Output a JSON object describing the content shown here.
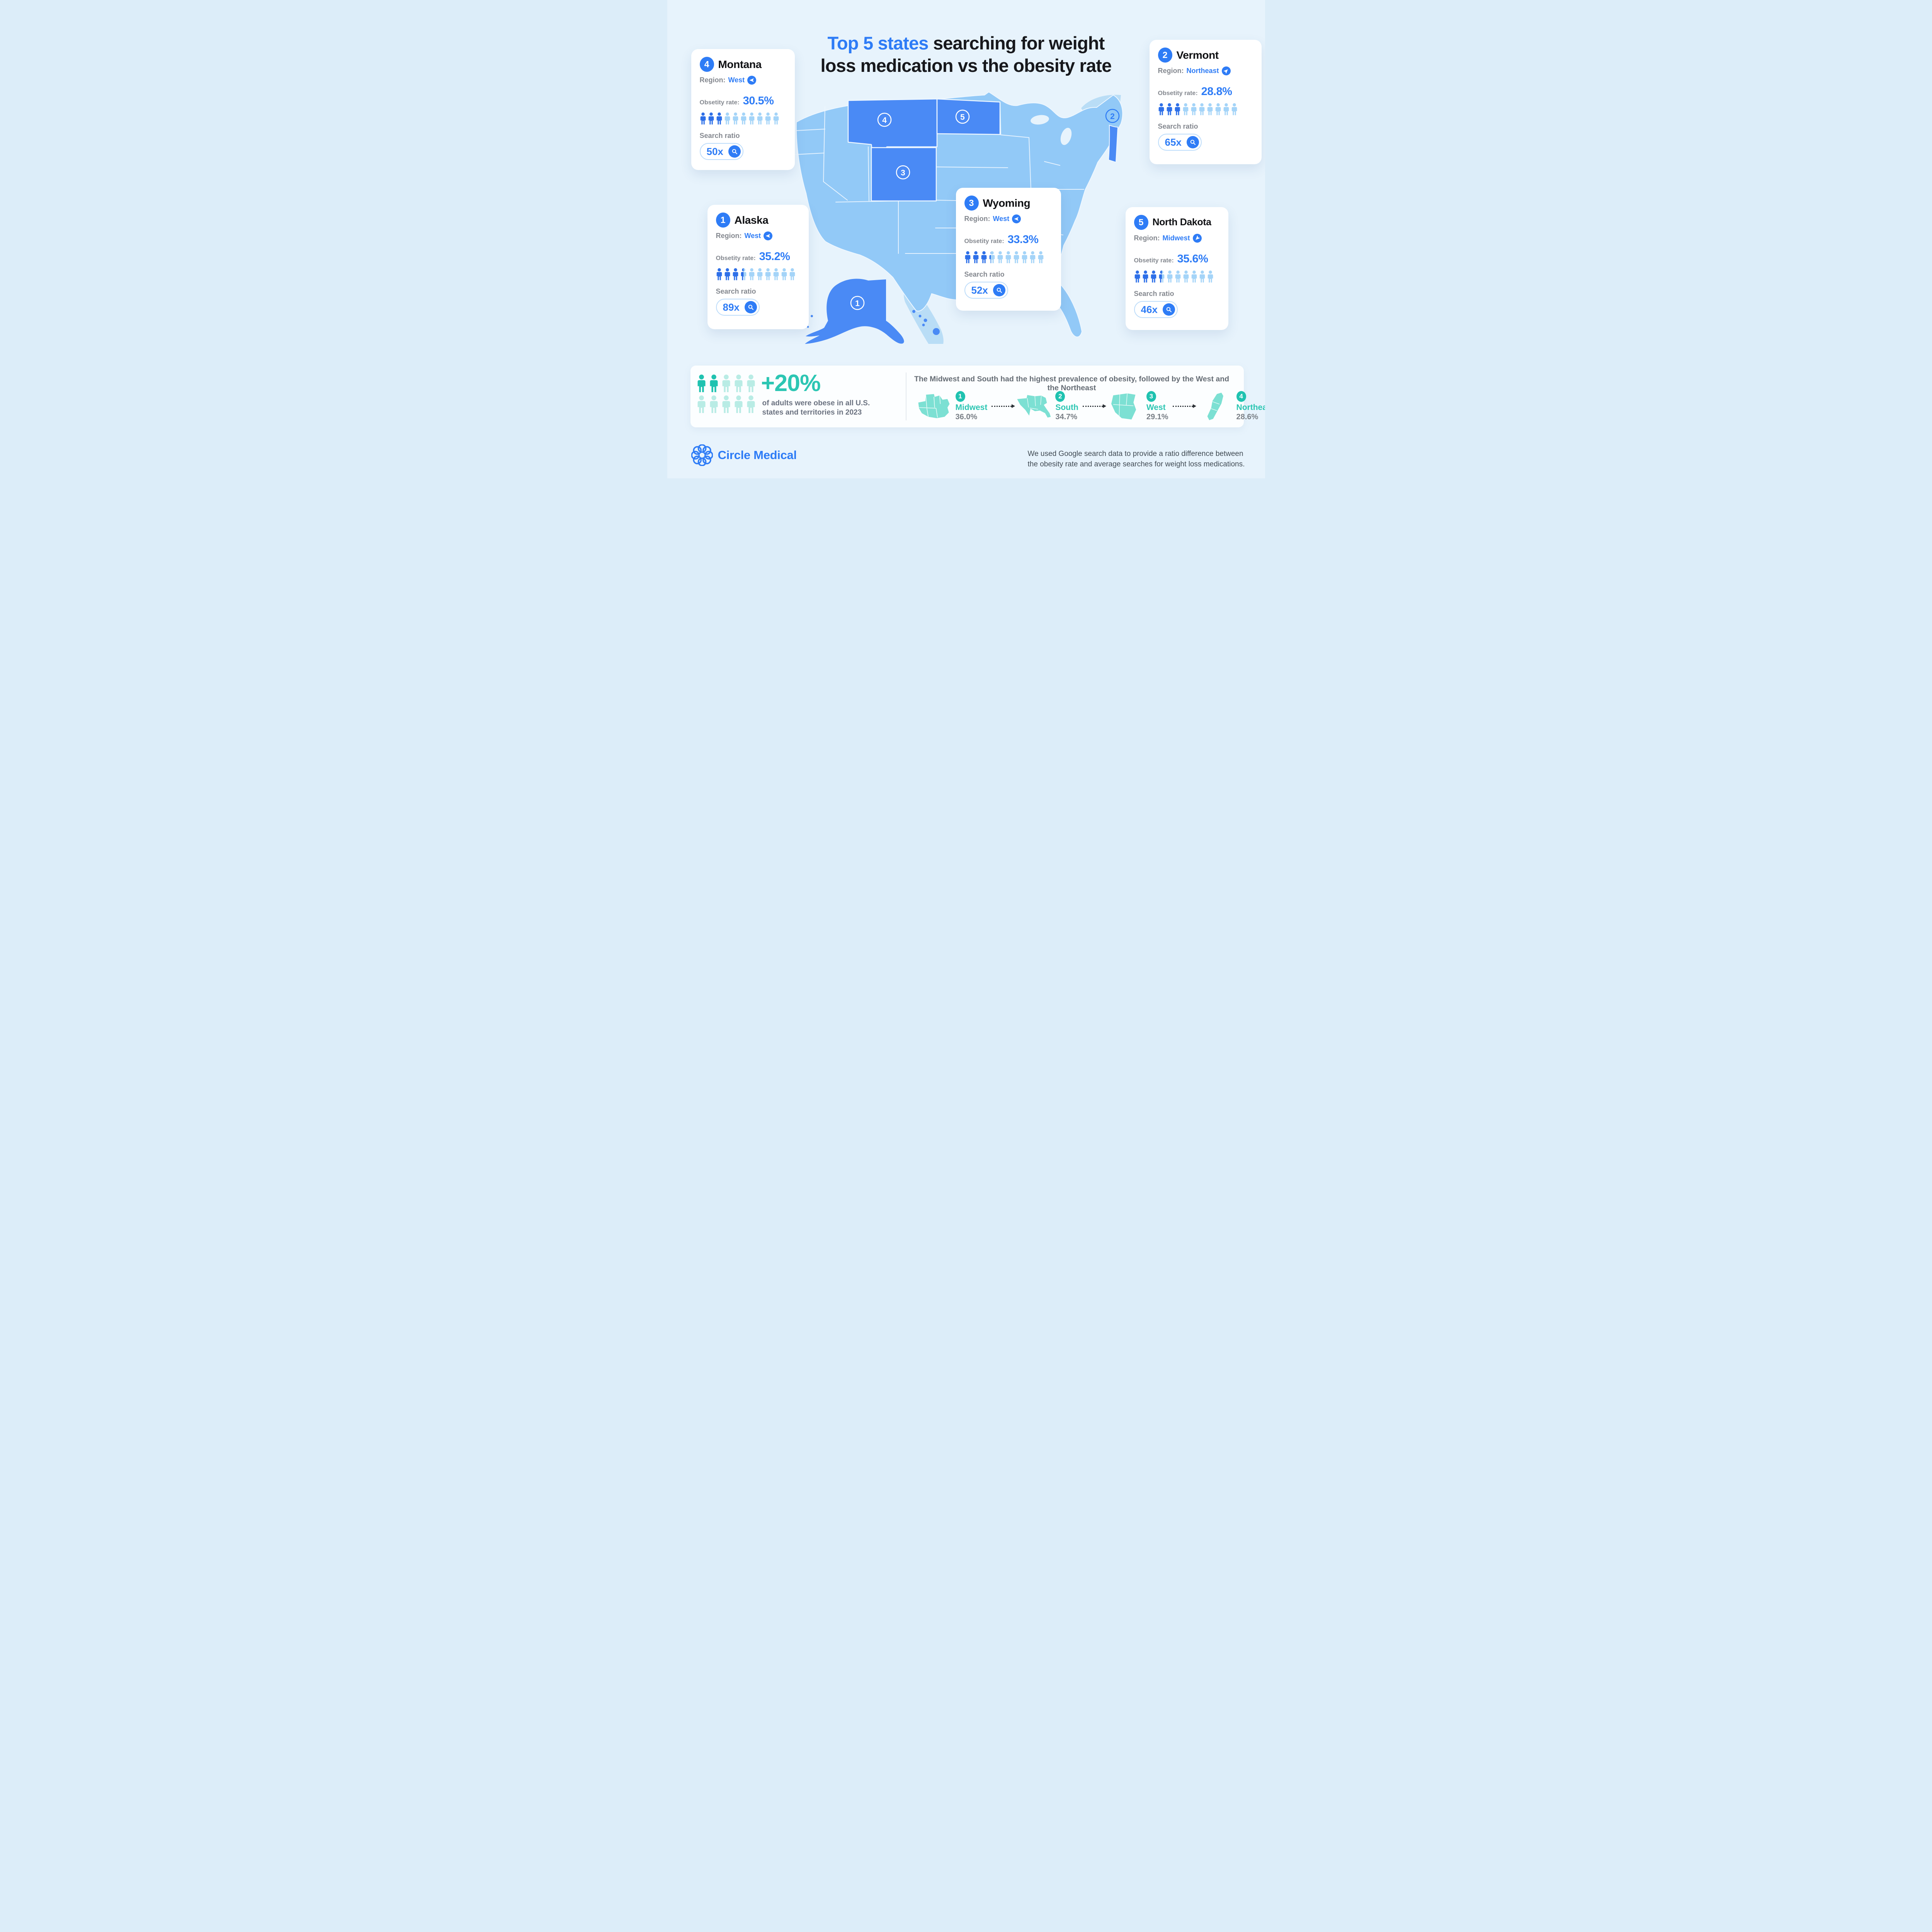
{
  "title": {
    "accent": "Top 5 states",
    "line1_rest": " searching for weight",
    "line2": "loss medication vs the obesity rate"
  },
  "labels": {
    "region": "Region:",
    "rate": "Obsetity rate:",
    "search": "Search ratio"
  },
  "cards": [
    {
      "rank": "1",
      "state": "Alaska",
      "region": "West",
      "direction": "west",
      "rate": "35.2%",
      "people_filled": 3.52,
      "ratio": "89x"
    },
    {
      "rank": "2",
      "state": "Vermont",
      "region": "Northeast",
      "direction": "northeast",
      "rate": "28.8%",
      "people_filled": 2.88,
      "ratio": "65x"
    },
    {
      "rank": "3",
      "state": "Wyoming",
      "region": "West",
      "direction": "west",
      "rate": "33.3%",
      "people_filled": 3.33,
      "ratio": "52x"
    },
    {
      "rank": "4",
      "state": "Montana",
      "region": "West",
      "direction": "west",
      "rate": "30.5%",
      "people_filled": 3.05,
      "ratio": "50x"
    },
    {
      "rank": "5",
      "state": "North Dakota",
      "region": "Midwest",
      "direction": "midwest",
      "rate": "35.6%",
      "people_filled": 3.56,
      "ratio": "46x"
    }
  ],
  "stat_banner": {
    "value": "+20%",
    "description": "of adults were obese in all U.S. states and territories in 2023",
    "people_filled": 2
  },
  "regions_panel": {
    "heading": "The Midwest and South had the highest prevalence of obesity, followed by the West and the Northeast",
    "items": [
      {
        "rank": "1",
        "name": "Midwest",
        "value": "36.0%"
      },
      {
        "rank": "2",
        "name": "South",
        "value": "34.7%"
      },
      {
        "rank": "3",
        "name": "West",
        "value": "29.1%"
      },
      {
        "rank": "4",
        "name": "Northeast",
        "value": "28.6%"
      }
    ]
  },
  "footer": {
    "brand": "Circle Medical",
    "note_line1": "We used Google search data to provide a ratio difference between",
    "note_line2": "the obesity rate and average searches for weight loss medications."
  },
  "colors": {
    "accent": "#2e7cf6",
    "map_state": "#92c9f7",
    "map_highlight": "#4a8af5",
    "teal": "#2cc6b3",
    "people": {
      "blue": {
        "dark": "#2e6fe8",
        "light": "#a4d4f8"
      },
      "teal": {
        "dark": "#1fc2b0",
        "light": "#b9ece5"
      }
    }
  },
  "chart_data": {
    "type": "pictogram+map",
    "title": "Top 5 states searching for weight loss medication vs the obesity rate",
    "top_states": [
      {
        "rank": 1,
        "state": "Alaska",
        "region": "West",
        "obesity_rate_pct": 35.2,
        "search_ratio_x": 89
      },
      {
        "rank": 2,
        "state": "Vermont",
        "region": "Northeast",
        "obesity_rate_pct": 28.8,
        "search_ratio_x": 65
      },
      {
        "rank": 3,
        "state": "Wyoming",
        "region": "West",
        "obesity_rate_pct": 33.3,
        "search_ratio_x": 52
      },
      {
        "rank": 4,
        "state": "Montana",
        "region": "West",
        "obesity_rate_pct": 30.5,
        "search_ratio_x": 50
      },
      {
        "rank": 5,
        "state": "North Dakota",
        "region": "Midwest",
        "obesity_rate_pct": 35.6,
        "search_ratio_x": 46
      }
    ],
    "region_obesity_pct": {
      "Midwest": 36.0,
      "South": 34.7,
      "West": 29.1,
      "Northeast": 28.6
    },
    "national_note_pct": 20,
    "national_note_year": 2023
  }
}
